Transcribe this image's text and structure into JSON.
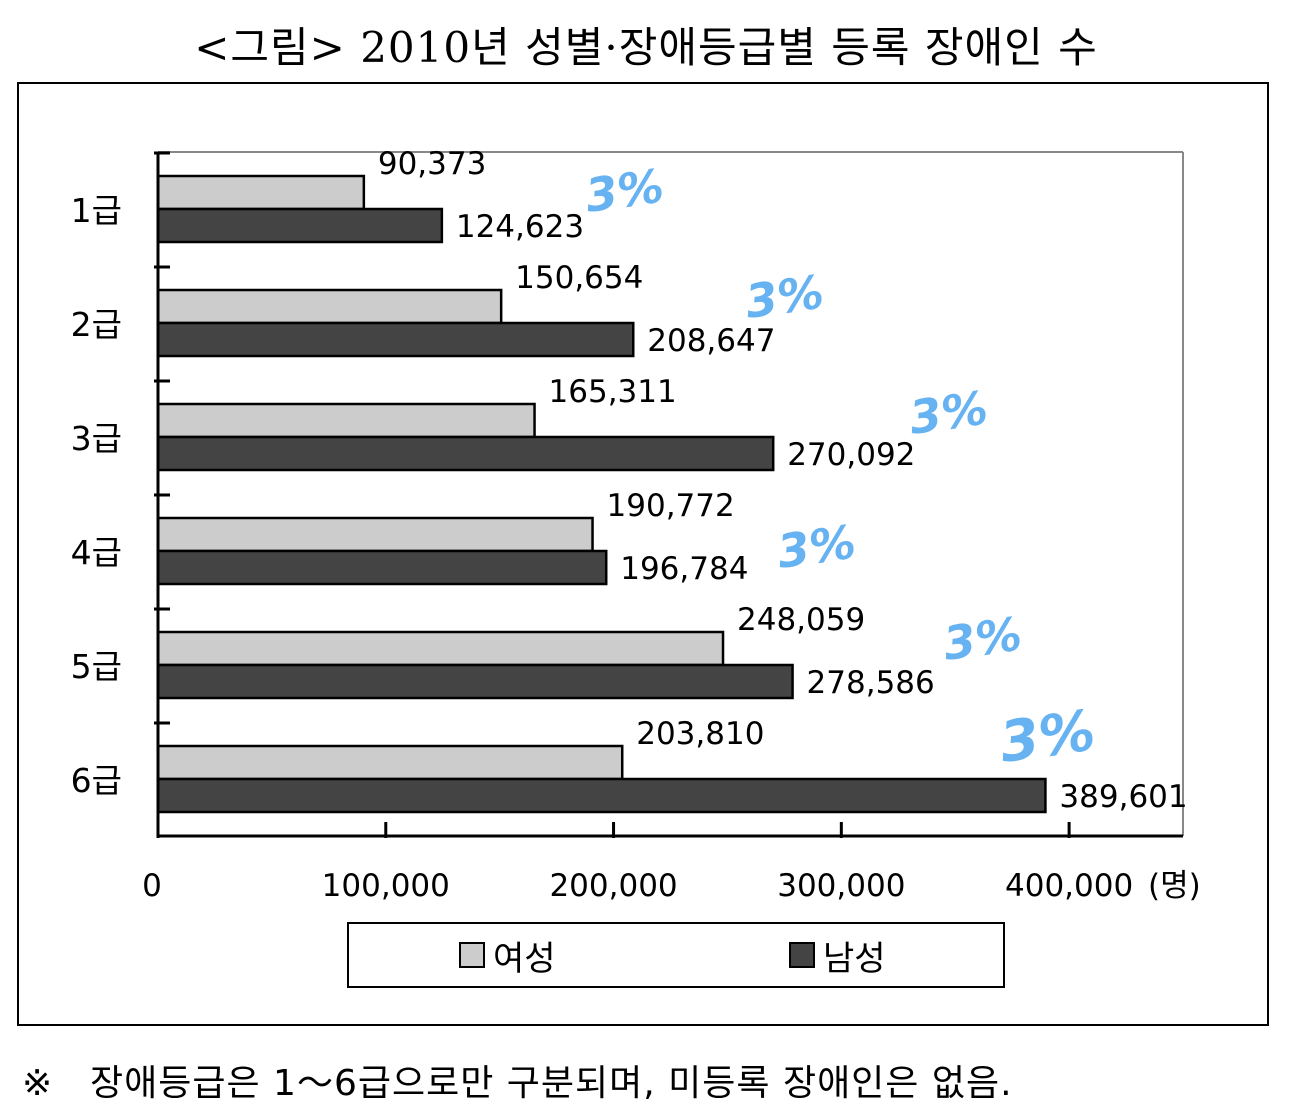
{
  "title": "<그림> 2010년 성별·장애등급별 등록 장애인 수",
  "footnote": {
    "mark": "※",
    "text": "장애등급은 1～6급으로만 구분되며, 미등록 장애인은 없음."
  },
  "colors": {
    "female": "#cccccc",
    "male": "#444444",
    "annotation": "#4da6f0"
  },
  "chart_data": {
    "type": "bar",
    "orientation": "horizontal",
    "categories": [
      "1급",
      "2급",
      "3급",
      "4급",
      "5급",
      "6급"
    ],
    "series": [
      {
        "name": "여성",
        "values": [
          90373,
          150654,
          165311,
          190772,
          248059,
          203810
        ],
        "labels": [
          "90,373",
          "150,654",
          "165,311",
          "190,772",
          "248,059",
          "203,810"
        ]
      },
      {
        "name": "남성",
        "values": [
          124623,
          208647,
          270092,
          196784,
          278586,
          389601
        ],
        "labels": [
          "124,623",
          "208,647",
          "270,092",
          "196,784",
          "278,586",
          "389,601"
        ]
      }
    ],
    "x_ticks": [
      "0",
      "100,000",
      "200,000",
      "300,000",
      "400,000"
    ],
    "x_tick_values": [
      0,
      100000,
      200000,
      300000,
      400000
    ],
    "xlim": [
      0,
      450000
    ],
    "unit": "(명)",
    "legend_position": "bottom",
    "grid": false,
    "handwritten_annotations": [
      "3%",
      "3%",
      "3%",
      "3%",
      "3%",
      "3%"
    ]
  }
}
